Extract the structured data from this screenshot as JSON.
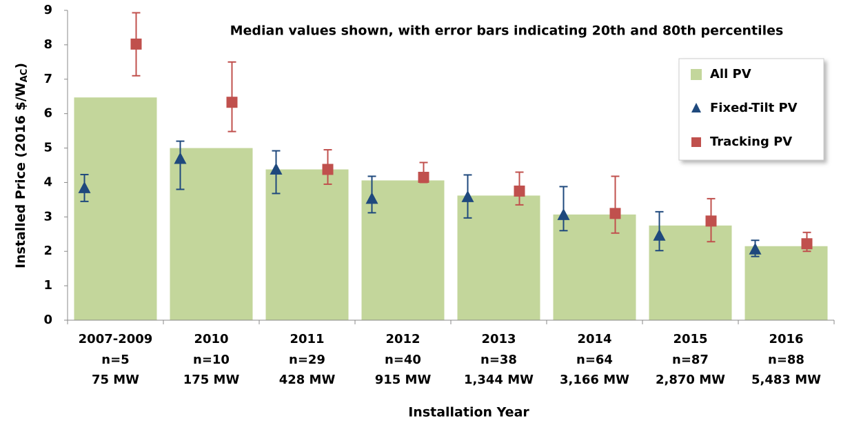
{
  "chart_data": {
    "type": "bar",
    "annotation": "Median values shown, with error bars indicating 20th and 80th percentiles",
    "x_label": "Installation Year",
    "y_label": "Installed Price (2016 $/W",
    "y_label_subscript": "AC",
    "y_label_end": ")",
    "categories": [
      "2007-2009",
      "2010",
      "2011",
      "2012",
      "2013",
      "2014",
      "2015",
      "2016"
    ],
    "sample_sizes": [
      "n=5",
      "n=10",
      "n=29",
      "n=40",
      "n=38",
      "n=64",
      "n=87",
      "n=88"
    ],
    "capacities": [
      "75 MW",
      "175 MW",
      "428 MW",
      "915 MW",
      "1,344 MW",
      "3,166 MW",
      "2,870 MW",
      "5,483 MW"
    ],
    "ylim": [
      0,
      9
    ],
    "yticks": [
      0,
      1,
      2,
      3,
      4,
      5,
      6,
      7,
      8,
      9
    ],
    "legend": "upper right",
    "series": [
      {
        "name": "All PV",
        "type": "bar",
        "color": "#c3d69b",
        "values": [
          6.47,
          5.0,
          4.38,
          4.06,
          3.62,
          3.07,
          2.75,
          2.15
        ]
      },
      {
        "name": "Fixed-Tilt PV",
        "type": "triangle",
        "color": "#1f497d",
        "values": [
          3.83,
          4.68,
          4.37,
          3.52,
          3.57,
          3.05,
          2.45,
          2.05
        ],
        "low": [
          3.45,
          3.8,
          3.68,
          3.12,
          2.97,
          2.6,
          2.02,
          1.85
        ],
        "high": [
          4.23,
          5.2,
          4.92,
          4.18,
          4.22,
          3.88,
          3.15,
          2.32
        ]
      },
      {
        "name": "Tracking PV",
        "type": "square",
        "color": "#c0504d",
        "values": [
          8.02,
          6.33,
          4.38,
          4.15,
          3.75,
          3.1,
          2.88,
          2.22
        ],
        "low": [
          7.1,
          5.48,
          3.95,
          4.0,
          3.35,
          2.53,
          2.28,
          2.0
        ],
        "high": [
          8.93,
          7.5,
          4.95,
          4.58,
          4.3,
          4.18,
          3.53,
          2.55
        ]
      }
    ]
  }
}
